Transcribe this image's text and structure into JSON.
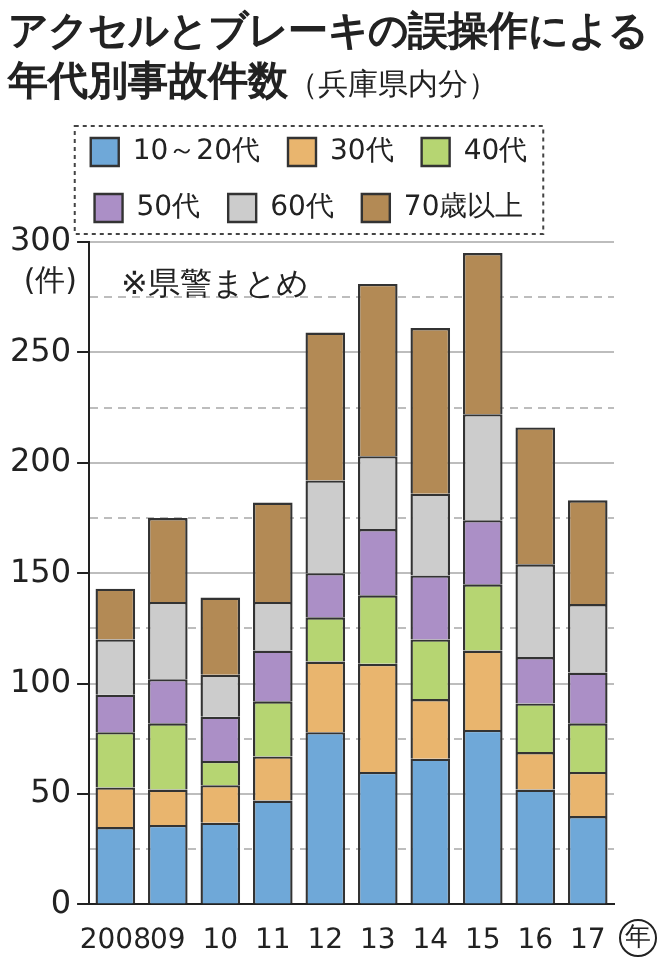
{
  "chart_data": {
    "type": "bar",
    "title": "アクセルとブレーキの誤操作による年代別事故件数",
    "subtitle": "（兵庫県内分）",
    "ylabel": "(件)",
    "xlabel": "年",
    "annotations": [
      "※県警まとめ"
    ],
    "categories": [
      "2008",
      "09",
      "10",
      "11",
      "12",
      "13",
      "14",
      "15",
      "16",
      "17"
    ],
    "stacked": true,
    "legend": "top",
    "grid": "y",
    "ylim": [
      0,
      300
    ],
    "yticks": [
      0,
      {
        "value": 25,
        "label": null
      },
      50,
      {
        "value": 75,
        "label": null
      },
      100,
      {
        "value": 125,
        "label": null
      },
      150,
      {
        "value": 175,
        "label": null
      },
      200,
      {
        "value": 225,
        "label": null
      },
      250,
      {
        "value": 275,
        "label": null
      },
      300
    ],
    "series": [
      {
        "name": "10～20代",
        "color": "#6fa8d8",
        "values": [
          35,
          36,
          37,
          47,
          78,
          60,
          66,
          79,
          52,
          40
        ]
      },
      {
        "name": "30代",
        "color": "#e9b56e",
        "values": [
          18,
          16,
          17,
          20,
          32,
          49,
          27,
          36,
          17,
          20
        ]
      },
      {
        "name": "40代",
        "color": "#b6d572",
        "values": [
          25,
          30,
          11,
          25,
          20,
          31,
          27,
          30,
          22,
          22
        ]
      },
      {
        "name": "50代",
        "color": "#ab8fc6",
        "values": [
          17,
          20,
          20,
          23,
          20,
          30,
          29,
          29,
          21,
          23
        ]
      },
      {
        "name": "60代",
        "color": "#cccccc",
        "values": [
          25,
          35,
          19,
          22,
          42,
          33,
          37,
          48,
          42,
          31
        ]
      },
      {
        "name": "70歳以上",
        "color": "#b38a55",
        "values": [
          23,
          38,
          35,
          45,
          67,
          78,
          75,
          73,
          62,
          47
        ]
      }
    ]
  }
}
